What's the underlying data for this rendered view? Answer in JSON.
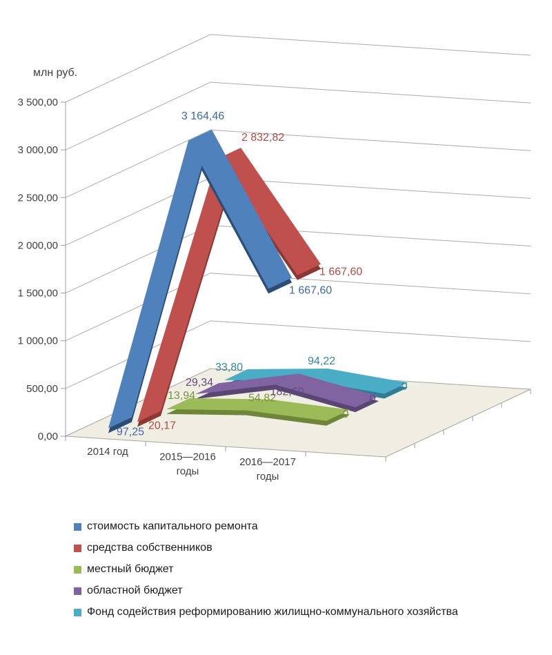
{
  "chart_data": {
    "type": "line",
    "style": "3d-ribbon-perspective",
    "title": "",
    "value_axis": {
      "label": "млн руб.",
      "min": 0,
      "max": 3500,
      "step": 500,
      "tick_labels": [
        "0,00",
        "500,00",
        "1 000,00",
        "1 500,00",
        "2 000,00",
        "2 500,00",
        "3 000,00",
        "3 500,00"
      ]
    },
    "categories": [
      {
        "lines": [
          "2014 год"
        ]
      },
      {
        "lines": [
          "2015—2016",
          "годы"
        ]
      },
      {
        "lines": [
          "2016—2017",
          "годы"
        ]
      }
    ],
    "series": [
      {
        "name": "стоимость капитального ремонта",
        "color": "#4F81BD",
        "dark_color": "#2C4D75",
        "label_color": "#3A67AC",
        "values": [
          97.25,
          3164.46,
          1667.6
        ],
        "labels": [
          "97,25",
          "3 164,46",
          "1 667,60"
        ]
      },
      {
        "name": "средства собственников",
        "color": "#C0504D",
        "dark_color": "#8B3734",
        "label_color": "#B04A45",
        "values": [
          20.17,
          2832.82,
          1667.6
        ],
        "labels": [
          "20,17",
          "2 832,82",
          "1 667,60"
        ]
      },
      {
        "name": "местный бюджет",
        "color": "#9BBB59",
        "dark_color": "#6E8639",
        "label_color": "#76923C",
        "values": [
          13.94,
          54.82,
          0
        ],
        "labels": [
          "13,94",
          "54,82",
          "0"
        ]
      },
      {
        "name": "областной бюджет",
        "color": "#8064A2",
        "dark_color": "#594672",
        "label_color": "#60497B",
        "values": [
          29.34,
          182.6,
          0
        ],
        "labels": [
          "29,34",
          "182,60",
          "0"
        ]
      },
      {
        "name": "Фонд содействия реформированию жилищно-коммунального хозяйства",
        "color": "#4BACC6",
        "dark_color": "#2F7C93",
        "label_color": "#31859C",
        "values": [
          33.8,
          94.22,
          0
        ],
        "labels": [
          "33,80",
          "94,22",
          "0"
        ]
      }
    ],
    "legend_position": "bottom-left",
    "grid": true,
    "floor_color": "#F0EEE3",
    "gridline_color": "#ABABAB"
  }
}
